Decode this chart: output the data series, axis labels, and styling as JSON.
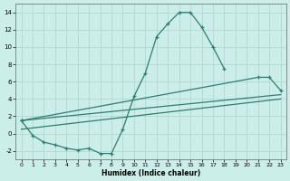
{
  "xlabel": "Humidex (Indice chaleur)",
  "background_color": "#cceee8",
  "line_color": "#2e7d6e",
  "grid_color": "#aad4cc",
  "xlim": [
    -0.5,
    23.5
  ],
  "ylim": [
    -3,
    15
  ],
  "xticks": [
    0,
    1,
    2,
    3,
    4,
    5,
    6,
    7,
    8,
    9,
    10,
    11,
    12,
    13,
    14,
    15,
    16,
    17,
    18,
    19,
    20,
    21,
    22,
    23
  ],
  "yticks": [
    -2,
    0,
    2,
    4,
    6,
    8,
    10,
    12,
    14
  ],
  "curve1_x": [
    0,
    1,
    2,
    3,
    4,
    5,
    6,
    7,
    8,
    9,
    10,
    11,
    12,
    13,
    14,
    15,
    16,
    17,
    18
  ],
  "curve1_y": [
    1.5,
    -0.2,
    -1.0,
    -1.3,
    -1.7,
    -1.9,
    -1.7,
    -2.3,
    -2.3,
    0.5,
    4.3,
    7.0,
    11.2,
    12.7,
    14.0,
    14.0,
    12.3,
    10.0,
    7.5
  ],
  "curve2_x": [
    0,
    21,
    22,
    23
  ],
  "curve2_y": [
    1.5,
    6.5,
    6.5,
    5.0
  ],
  "curve3_x": [
    0,
    23
  ],
  "curve3_y": [
    1.5,
    4.5
  ],
  "curve4_x": [
    0,
    23
  ],
  "curve4_y": [
    0.5,
    4.0
  ]
}
